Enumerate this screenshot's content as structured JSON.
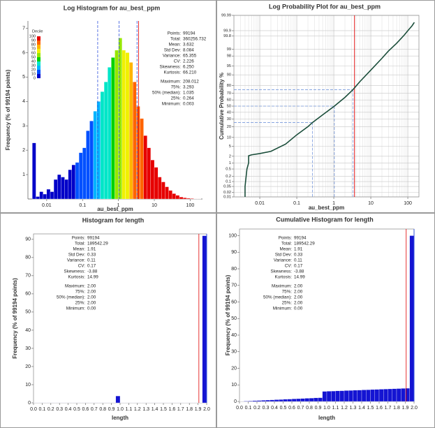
{
  "chart_data": [
    {
      "type": "histogram",
      "title": "Log Histogram for au_best_ppm",
      "xlabel": "au_best_ppm",
      "ylabel": "Frequency (% of 99194 points)",
      "xscale": "log",
      "xlim": [
        0.003,
        220
      ],
      "xticks": [
        0.01,
        0.1,
        1,
        10,
        100
      ],
      "ylim": [
        0,
        7.3
      ],
      "yticks": [
        1,
        2,
        3,
        4,
        5,
        6,
        7
      ],
      "bins": [
        0.00398,
        0.00501,
        0.00631,
        0.00794,
        0.01,
        0.0126,
        0.0158,
        0.02,
        0.0251,
        0.0316,
        0.0398,
        0.0501,
        0.0631,
        0.0794,
        0.1,
        0.126,
        0.158,
        0.2,
        0.251,
        0.316,
        0.398,
        0.501,
        0.631,
        0.794,
        1,
        1.26,
        1.58,
        2,
        2.51,
        3.16,
        3.98,
        5.01,
        6.31,
        7.94,
        10,
        12.6,
        15.8,
        20,
        25.1,
        31.6,
        39.8,
        50.1,
        63.1,
        79.4,
        100,
        126,
        158,
        200,
        251
      ],
      "values": [
        2.3,
        0.1,
        0.3,
        0.2,
        0.4,
        0.3,
        0.8,
        1.0,
        0.9,
        0.8,
        1.2,
        1.4,
        1.5,
        1.9,
        2.1,
        2.8,
        3.2,
        3.6,
        4.0,
        4.4,
        4.8,
        5.4,
        5.8,
        6.1,
        6.6,
        6.1,
        6.0,
        5.6,
        4.8,
        3.8,
        3.3,
        2.6,
        2.1,
        1.6,
        1.3,
        0.9,
        0.7,
        0.5,
        0.35,
        0.22,
        0.15,
        0.08,
        0.05,
        0.03,
        0.02,
        0.01,
        0.01,
        0
      ],
      "color_by": "decile",
      "legend": {
        "title": "Decile",
        "labels": [
          100,
          90,
          80,
          70,
          60,
          50,
          40,
          30,
          20,
          10,
          0
        ],
        "colors": [
          "#0000c8",
          "#0050ff",
          "#00b4ff",
          "#00e6c8",
          "#00d200",
          "#96e600",
          "#f0f000",
          "#ffb400",
          "#ff6400",
          "#e60000"
        ]
      },
      "stats": [
        [
          {
            "label": "Points:",
            "value": 99194
          },
          {
            "label": "Total:",
            "value": 360256.732
          },
          {
            "label": "Mean:",
            "value": 3.632,
            "color": "#e00000",
            "line": "solid"
          },
          {
            "label": "Std Dev:",
            "value": 8.084
          },
          {
            "label": "Variance:",
            "value": 65.355
          },
          {
            "label": "CV:",
            "value": 2.226
          },
          {
            "label": "Skewness:",
            "value": 6.25,
            "value_label": "6.250"
          },
          {
            "label": "Kurtosis:",
            "value": 66.21,
            "value_label": "66.210"
          }
        ],
        [
          {
            "label": "Maximum:",
            "value": 208.012
          },
          {
            "label": "75%:",
            "value": 3.293,
            "color": "#3355dd",
            "line": "dashed"
          },
          {
            "label": "50% (median):",
            "value": 1.035,
            "color": "#3355dd",
            "line": "dashed"
          },
          {
            "label": "25%:",
            "value": 0.264,
            "color": "#3355dd",
            "line": "dashed"
          },
          {
            "label": "Minimum:",
            "value": 0.003
          }
        ]
      ]
    },
    {
      "type": "probability",
      "title": "Log Probability Plot for au_best_ppm",
      "xlabel": "au_best_ppm",
      "ylabel": "Cumulative Probability %",
      "xscale": "log",
      "yscale": "probability",
      "xlim": [
        0.002,
        200
      ],
      "xticks": [
        0.01,
        0.1,
        1,
        10,
        100
      ],
      "ylim": [
        0.01,
        99.99
      ],
      "yticks": [
        0.01,
        0.02,
        0.05,
        0.1,
        0.2,
        0.5,
        1,
        2,
        5,
        10,
        20,
        30,
        40,
        50,
        60,
        70,
        80,
        90,
        95,
        98,
        99,
        99.8,
        99.9,
        99.99
      ],
      "grid": true,
      "minor_grid": true,
      "color": "#1a4d3a",
      "x": [
        0.004,
        0.004,
        0.0045,
        0.005,
        0.005,
        0.006,
        0.01,
        0.02,
        0.05,
        0.1,
        0.2,
        0.264,
        0.5,
        1.035,
        2,
        3.293,
        5,
        10,
        20,
        30,
        50,
        80,
        100,
        130,
        150
      ],
      "values": [
        0.01,
        0.05,
        0.5,
        1,
        2.1,
        2.3,
        2.6,
        3.2,
        6,
        12,
        20,
        25,
        36,
        50,
        64,
        75,
        84,
        93,
        97.5,
        98.8,
        99.5,
        99.82,
        99.9,
        99.95,
        99.97
      ],
      "reference": [
        {
          "x": 0.264,
          "y": 25
        },
        {
          "x": 1.035,
          "y": 50
        },
        {
          "x": 3.293,
          "y": 75
        }
      ],
      "ref_color": "#7799dd",
      "mean": 3.632,
      "mean_color": "#e00000"
    },
    {
      "type": "histogram",
      "title": "Histogram for length",
      "xlabel": "length",
      "ylabel": "Frequency (% of 99194 points)",
      "xlim": [
        0,
        2
      ],
      "xticks": [
        {
          "value": 0,
          "label": "0.0"
        },
        0.1,
        0.2,
        0.3,
        0.4,
        0.5,
        0.6,
        0.7,
        0.8,
        0.9,
        {
          "value": 1,
          "label": "1.0"
        },
        1.1,
        1.2,
        1.3,
        1.4,
        1.5,
        1.6,
        1.7,
        1.8,
        1.9,
        {
          "value": 2,
          "label": "2.0"
        }
      ],
      "ylim": [
        0,
        93
      ],
      "yticks": [
        0,
        10,
        20,
        30,
        40,
        50,
        60,
        70,
        80,
        90
      ],
      "color": "#1414d2",
      "bins": [
        0,
        0.05,
        0.1,
        0.15,
        0.2,
        0.25,
        0.3,
        0.35,
        0.4,
        0.45,
        0.5,
        0.55,
        0.6,
        0.65,
        0.7,
        0.75,
        0.8,
        0.85,
        0.9,
        0.95,
        1,
        1.05,
        1.1,
        1.15,
        1.2,
        1.25,
        1.3,
        1.35,
        1.4,
        1.45,
        1.5,
        1.55,
        1.6,
        1.65,
        1.7,
        1.75,
        1.8,
        1.85,
        1.9,
        1.95,
        2
      ],
      "values": [
        0.12,
        0.12,
        0.12,
        0.12,
        0.12,
        0.12,
        0.12,
        0.12,
        0.12,
        0.12,
        0.12,
        0.12,
        0.12,
        0.12,
        0.12,
        0.12,
        0.12,
        0.12,
        0.12,
        3.8,
        0.1,
        0.1,
        0.1,
        0.1,
        0.1,
        0.1,
        0.1,
        0.1,
        0.1,
        0.1,
        0.1,
        0.1,
        0.1,
        0.1,
        0.1,
        0.1,
        0.1,
        0.1,
        0.1,
        92
      ],
      "stats": [
        [
          {
            "label": "Points:",
            "value": 99194
          },
          {
            "label": "Total:",
            "value": 189542.29
          },
          {
            "label": "Mean:",
            "value": 1.91,
            "color": "#e00000",
            "line": "solid"
          },
          {
            "label": "Std Dev:",
            "value": 0.33
          },
          {
            "label": "Variance:",
            "value": 0.11
          },
          {
            "label": "CV:",
            "value": 0.17
          },
          {
            "label": "Skewness:",
            "value": -3.88
          },
          {
            "label": "Kurtosis:",
            "value": 14.99
          }
        ],
        [
          {
            "label": "Maximum:",
            "value": 2,
            "value_label": "2.00"
          },
          {
            "label": "75%:",
            "value": 2,
            "value_label": "2.00",
            "color": "#3355dd",
            "line": "solid"
          },
          {
            "label": "50% (median):",
            "value": 2,
            "value_label": "2.00",
            "color": "#3355dd",
            "line": "solid"
          },
          {
            "label": "25%:",
            "value": 2,
            "value_label": "2.00",
            "color": "#3355dd",
            "line": "solid"
          },
          {
            "label": "Minimum:",
            "value": 0,
            "value_label": "0.00"
          }
        ]
      ]
    },
    {
      "type": "histogram",
      "title": "Cumulative Histogram for length",
      "xlabel": "length",
      "ylabel": "Frequency (% of 99194 points)",
      "xlim": [
        0,
        2
      ],
      "xticks": [
        {
          "value": 0,
          "label": "0.0"
        },
        0.1,
        0.2,
        0.3,
        0.4,
        0.5,
        0.6,
        0.7,
        0.8,
        0.9,
        {
          "value": 1,
          "label": "1.0"
        },
        1.1,
        1.2,
        1.3,
        1.4,
        1.5,
        1.6,
        1.7,
        1.8,
        1.9,
        {
          "value": 2,
          "label": "2.0"
        }
      ],
      "ylim": [
        0,
        104
      ],
      "yticks": [
        0,
        10,
        20,
        30,
        40,
        50,
        60,
        70,
        80,
        90,
        100
      ],
      "color": "#1414d2",
      "bins": [
        0,
        0.05,
        0.1,
        0.15,
        0.2,
        0.25,
        0.3,
        0.35,
        0.4,
        0.45,
        0.5,
        0.55,
        0.6,
        0.65,
        0.7,
        0.75,
        0.8,
        0.85,
        0.9,
        0.95,
        1,
        1.05,
        1.1,
        1.15,
        1.2,
        1.25,
        1.3,
        1.35,
        1.4,
        1.45,
        1.5,
        1.55,
        1.6,
        1.65,
        1.7,
        1.75,
        1.8,
        1.85,
        1.9,
        1.95,
        2
      ],
      "values": [
        0.12,
        0.24,
        0.36,
        0.48,
        0.6,
        0.72,
        0.84,
        0.96,
        1.08,
        1.2,
        1.32,
        1.44,
        1.56,
        1.68,
        1.8,
        1.92,
        2.04,
        2.16,
        2.28,
        6.08,
        6.18,
        6.28,
        6.38,
        6.48,
        6.58,
        6.68,
        6.78,
        6.88,
        6.98,
        7.08,
        7.18,
        7.28,
        7.38,
        7.48,
        7.58,
        7.68,
        7.78,
        7.88,
        7.98,
        100
      ],
      "stats": [
        [
          {
            "label": "Points:",
            "value": 99194
          },
          {
            "label": "Total:",
            "value": 189542.29
          },
          {
            "label": "Mean:",
            "value": 1.91,
            "color": "#e00000",
            "line": "solid"
          },
          {
            "label": "Std Dev:",
            "value": 0.33
          },
          {
            "label": "Variance:",
            "value": 0.11
          },
          {
            "label": "CV:",
            "value": 0.17
          },
          {
            "label": "Skewness:",
            "value": -3.88
          },
          {
            "label": "Kurtosis:",
            "value": 14.99
          }
        ],
        [
          {
            "label": "Maximum:",
            "value": 2,
            "value_label": "2.00"
          },
          {
            "label": "75%:",
            "value": 2,
            "value_label": "2.00",
            "color": "#3355dd",
            "line": "solid"
          },
          {
            "label": "50% (median):",
            "value": 2,
            "value_label": "2.00",
            "color": "#3355dd",
            "line": "solid"
          },
          {
            "label": "25%:",
            "value": 2,
            "value_label": "2.00",
            "color": "#3355dd",
            "line": "solid"
          },
          {
            "label": "Minimum:",
            "value": 0,
            "value_label": "0.00"
          }
        ]
      ]
    }
  ]
}
